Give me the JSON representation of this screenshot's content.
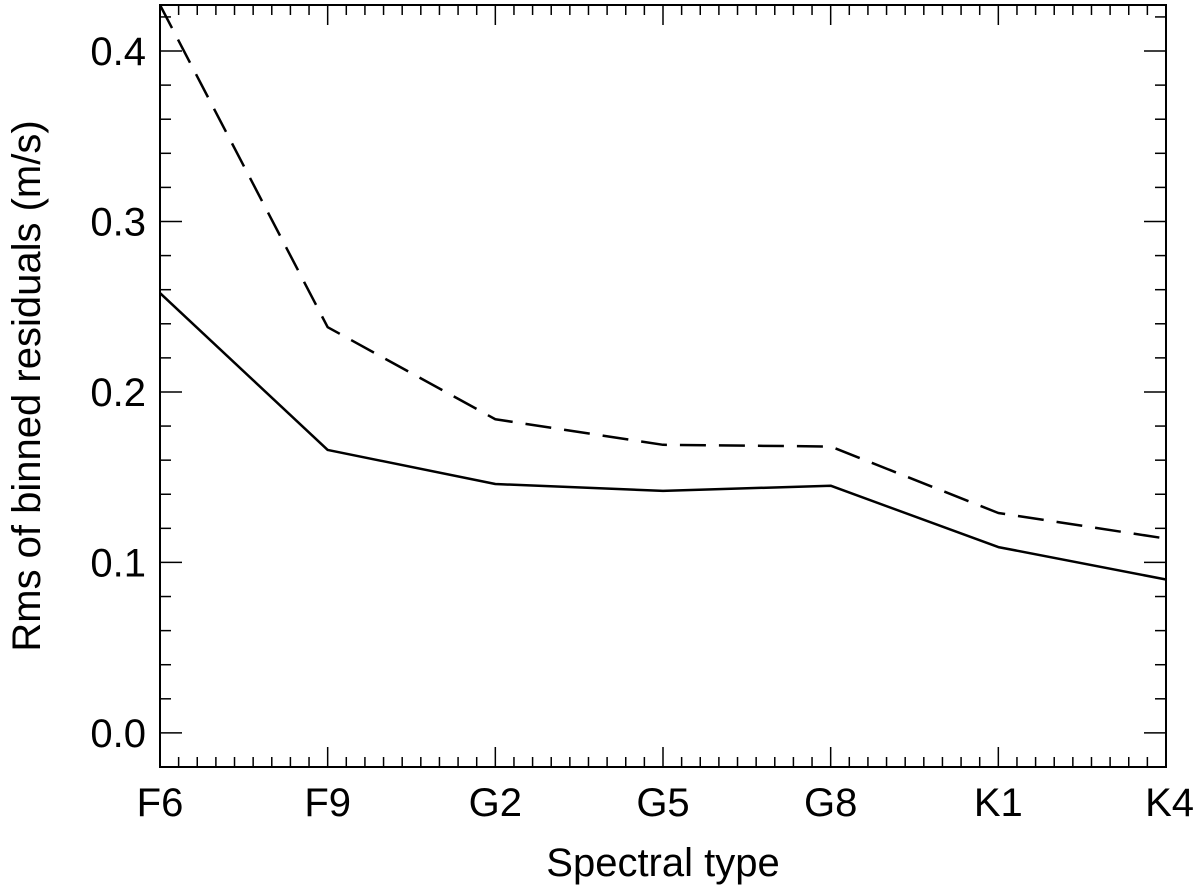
{
  "chart_data": {
    "type": "line",
    "title": "",
    "xlabel": "Spectral type",
    "ylabel": "Rms of binned residuals (m/s)",
    "categories": [
      "F6",
      "F9",
      "G2",
      "G5",
      "G8",
      "K1",
      "K4"
    ],
    "ylim": [
      -0.02,
      0.427
    ],
    "yticks": [
      0.0,
      0.1,
      0.2,
      0.3,
      0.4
    ],
    "ytick_labels": [
      "0.0",
      "0.1",
      "0.2",
      "0.3",
      "0.4"
    ],
    "grid": false,
    "legend": "none",
    "series": [
      {
        "style": "solid",
        "values": [
          0.258,
          0.166,
          0.146,
          0.142,
          0.145,
          0.109,
          0.09
        ]
      },
      {
        "style": "dashed",
        "values": [
          0.427,
          0.238,
          0.184,
          0.169,
          0.168,
          0.129,
          0.114
        ]
      }
    ]
  }
}
